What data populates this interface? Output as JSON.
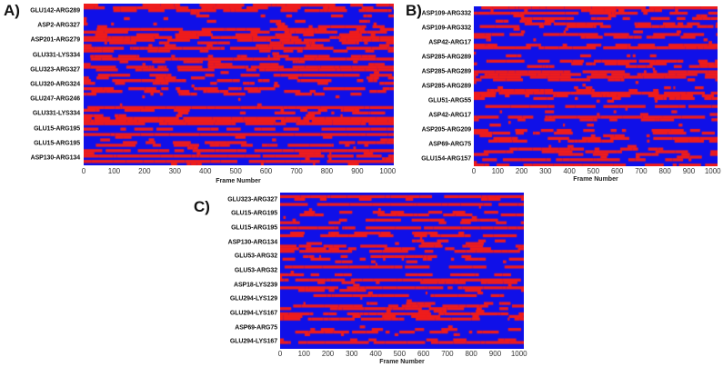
{
  "chart_data": [
    {
      "type": "heatmap",
      "panel": "A)",
      "xlabel": "Frame Number",
      "ylabel": "",
      "xlim": [
        0,
        1020
      ],
      "x_ticks": [
        "0",
        "100",
        "200",
        "300",
        "400",
        "500",
        "600",
        "700",
        "800",
        "900",
        "1000"
      ],
      "y_tick_labels": [
        "GLU142-ARG289",
        "ASP2-ARG327",
        "ASP201-ARG279",
        "GLU331-LYS334",
        "GLU323-ARG327",
        "GLU320-ARG324",
        "GLU247-ARG246",
        "GLU331-LYS334",
        "GLU15-ARG195",
        "GLU15-ARG195",
        "ASP130-ARG134"
      ],
      "colors": {
        "present": "#ee1c1c",
        "absent": "#1010e8"
      },
      "red_fraction": 0.42
    },
    {
      "type": "heatmap",
      "panel": "B)",
      "xlabel": "Frame Number",
      "ylabel": "",
      "xlim": [
        0,
        1020
      ],
      "x_ticks": [
        "0",
        "100",
        "200",
        "300",
        "400",
        "500",
        "600",
        "700",
        "800",
        "900",
        "1000"
      ],
      "y_tick_labels": [
        "ASP109-ARG332",
        "ASP109-ARG332",
        "ASP42-ARG17",
        "ASP285-ARG289",
        "ASP285-ARG289",
        "ASP285-ARG289",
        "GLU51-ARG55",
        "ASP42-ARG17",
        "ASP205-ARG209",
        "ASP69-ARG75",
        "GLU154-ARG157"
      ],
      "colors": {
        "present": "#ee1c1c",
        "absent": "#1010e8"
      },
      "red_fraction": 0.38
    },
    {
      "type": "heatmap",
      "panel": "C)",
      "xlabel": "Frame Number",
      "ylabel": "",
      "xlim": [
        0,
        1020
      ],
      "x_ticks": [
        "0",
        "100",
        "200",
        "300",
        "400",
        "500",
        "600",
        "700",
        "800",
        "900",
        "1000"
      ],
      "y_tick_labels": [
        "GLU323-ARG327",
        "GLU15-ARG195",
        "GLU15-ARG195",
        "ASP130-ARG134",
        "GLU53-ARG32",
        "GLU53-ARG32",
        "ASP18-LYS239",
        "GLU294-LYS129",
        "GLU294-LYS167",
        "ASP69-ARG75",
        "GLU294-LYS167"
      ],
      "colors": {
        "present": "#ee1c1c",
        "absent": "#1010e8"
      },
      "red_fraction": 0.38
    }
  ],
  "panels": [
    {
      "letter": "A)"
    },
    {
      "letter": "B)"
    },
    {
      "letter": "C)"
    }
  ]
}
